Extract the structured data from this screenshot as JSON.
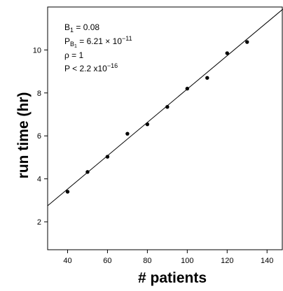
{
  "chart_data": {
    "type": "scatter",
    "title": "",
    "xlabel": "# patients",
    "ylabel": "run time (hr)",
    "xlim": [
      30,
      148
    ],
    "ylim": [
      0.7,
      12.0
    ],
    "xticks": [
      40,
      60,
      80,
      100,
      120,
      140
    ],
    "yticks": [
      2,
      4,
      6,
      8,
      10
    ],
    "points": [
      {
        "x": 40,
        "y": 3.4
      },
      {
        "x": 50,
        "y": 4.32
      },
      {
        "x": 60,
        "y": 5.03
      },
      {
        "x": 70,
        "y": 6.1
      },
      {
        "x": 80,
        "y": 6.54
      },
      {
        "x": 90,
        "y": 7.35
      },
      {
        "x": 100,
        "y": 8.2
      },
      {
        "x": 110,
        "y": 8.7
      },
      {
        "x": 120,
        "y": 9.85
      },
      {
        "x": 130,
        "y": 10.37
      }
    ],
    "fit_line": {
      "slope": 0.0776,
      "intercept": 0.42
    },
    "annotations": {
      "b1": {
        "symbol": "B",
        "sub": "1",
        "text": " = 0.08"
      },
      "pb1": {
        "symbol": "P",
        "sub": "B",
        "subsub": "1",
        "text": " = 6.21 × 10",
        "sup": "−11"
      },
      "rho": {
        "text": "ρ = 1"
      },
      "p": {
        "text": "P < 2.2 x10",
        "sup": "−16"
      }
    },
    "grid": false
  }
}
